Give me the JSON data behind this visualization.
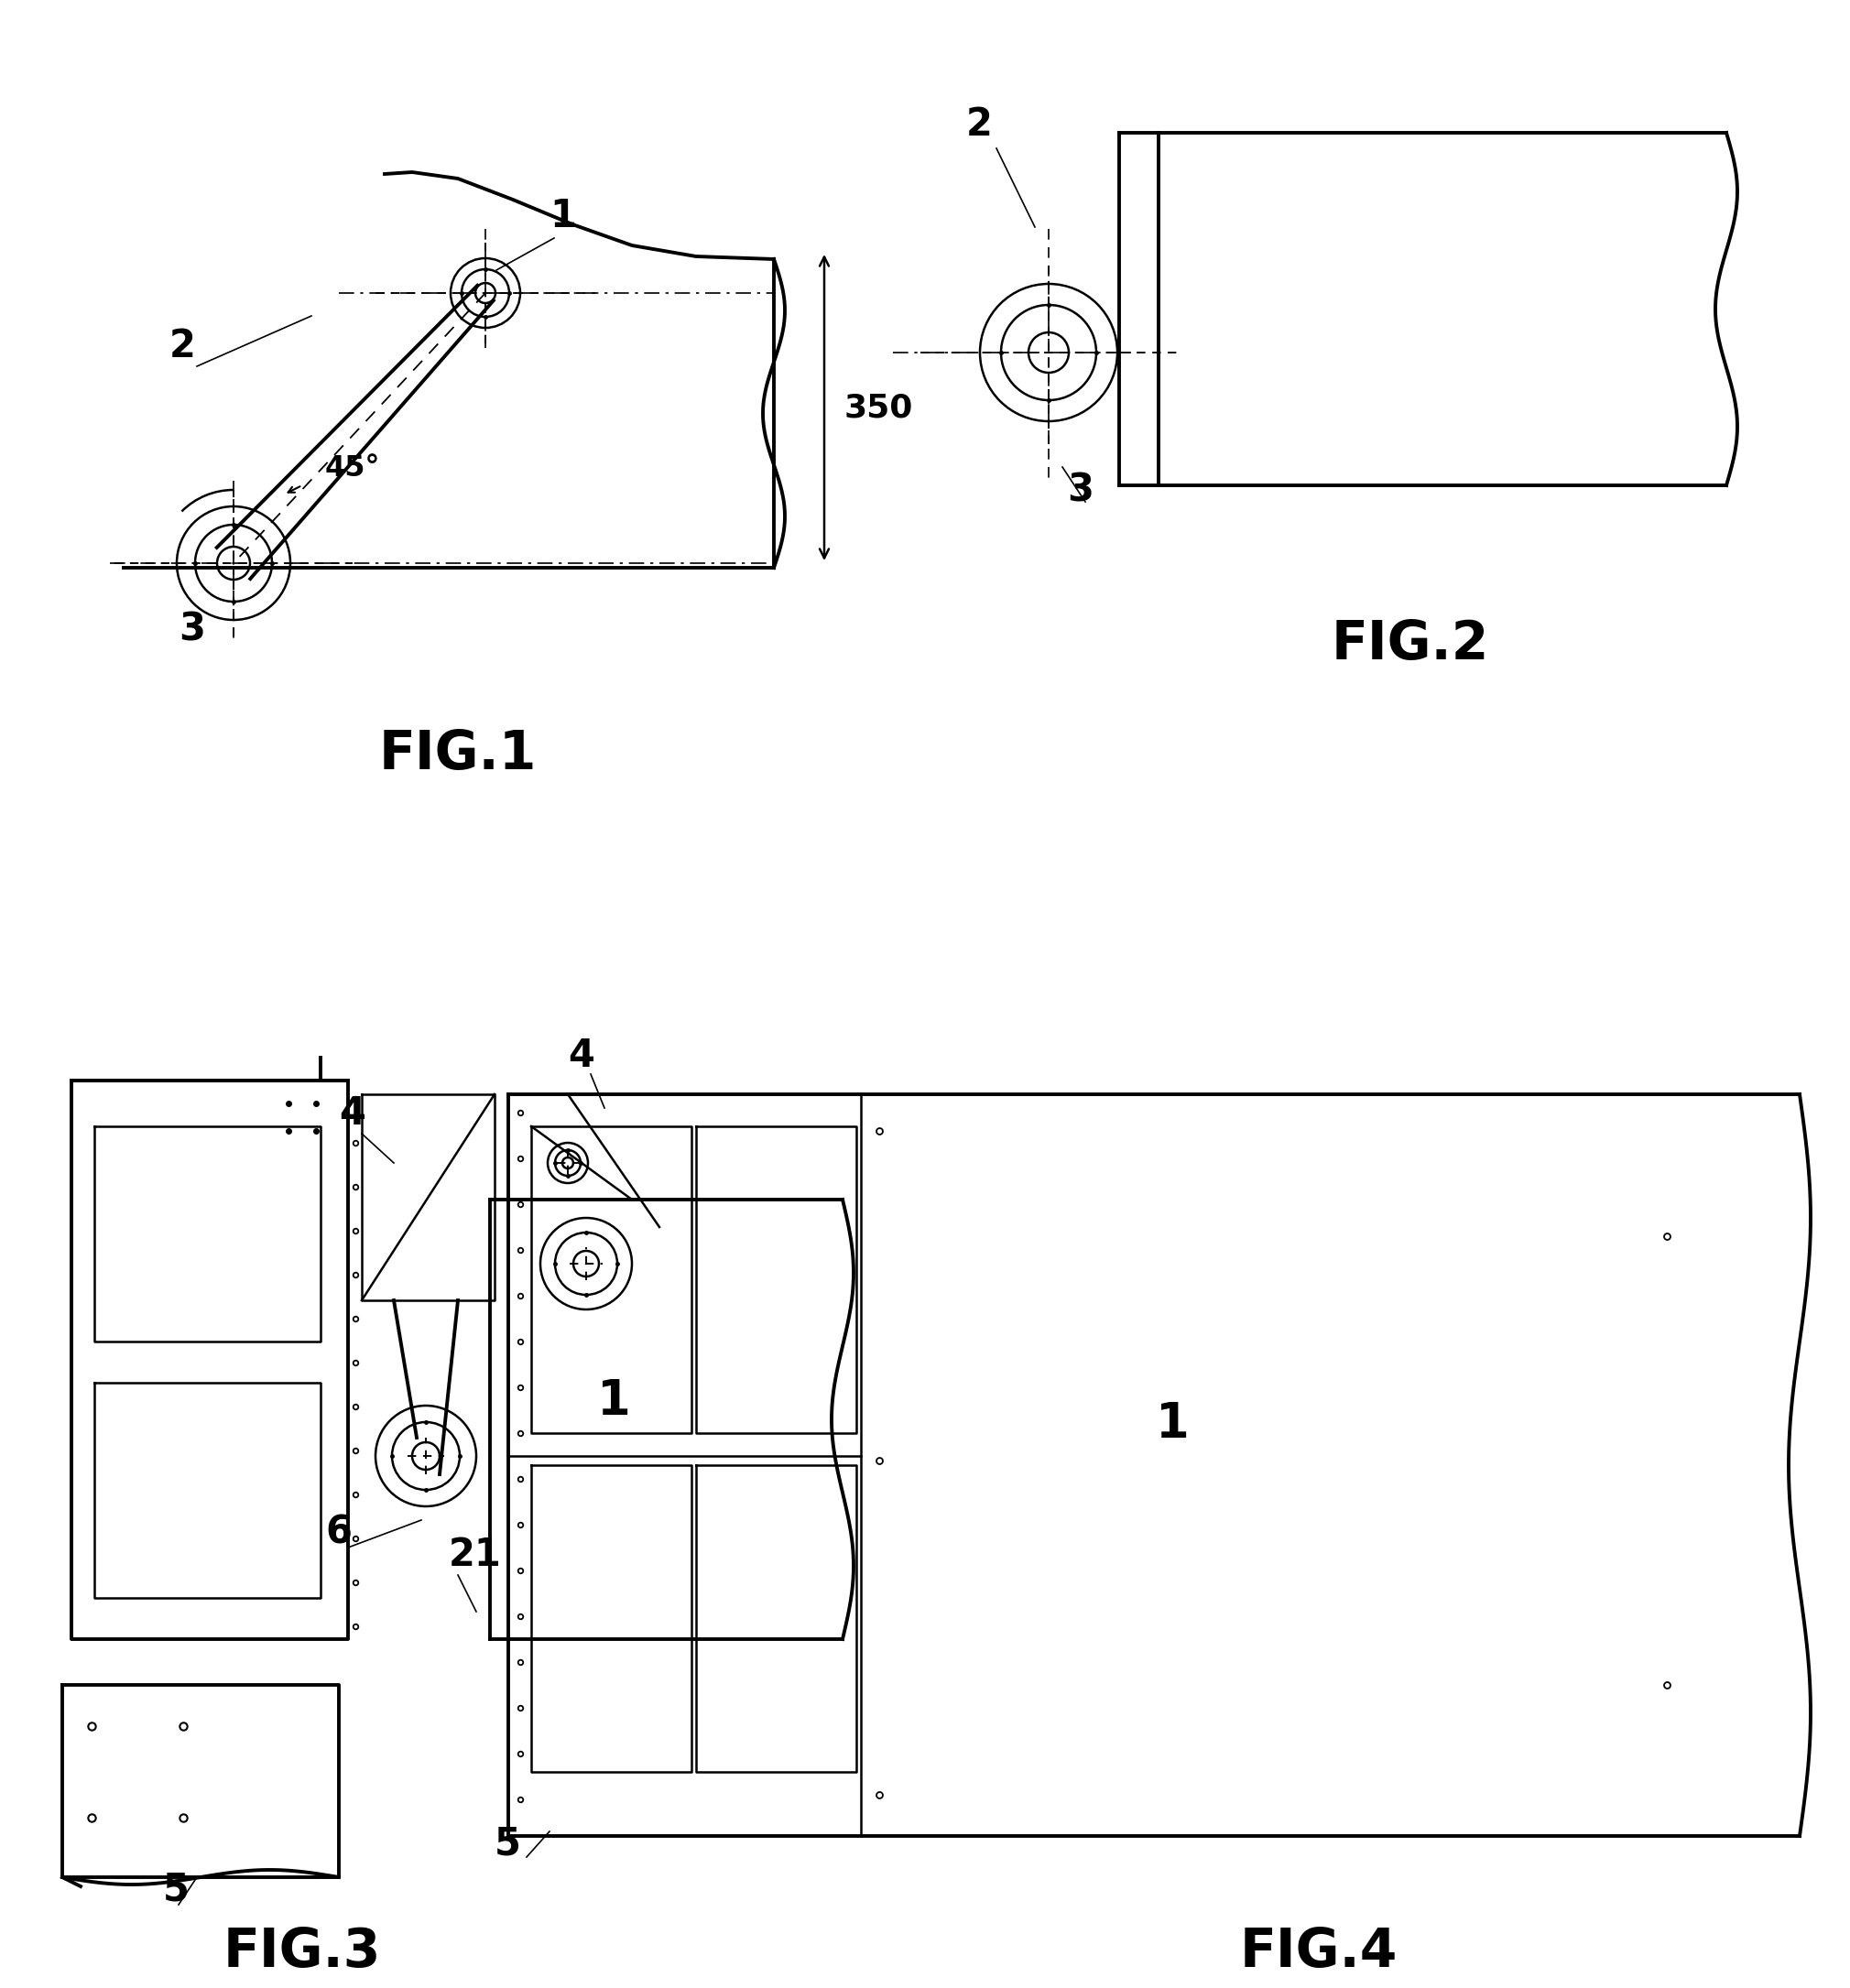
{
  "bg": "#ffffff",
  "lc": "#000000",
  "lwt": 2.8,
  "lwm": 1.8,
  "lwn": 1.2,
  "fig1_label": "FIG.1",
  "fig2_label": "FIG.2",
  "fig3_label": "FIG.3",
  "fig4_label": "FIG.4",
  "cap_fs": 42,
  "ref_fs": 30,
  "dim_fs": 26,
  "dim_text": "350",
  "angle_text": "45°",
  "ref1": "1",
  "ref2": "2",
  "ref3": "3",
  "ref4": "4",
  "ref5": "5",
  "ref6": "6",
  "ref21": "21"
}
